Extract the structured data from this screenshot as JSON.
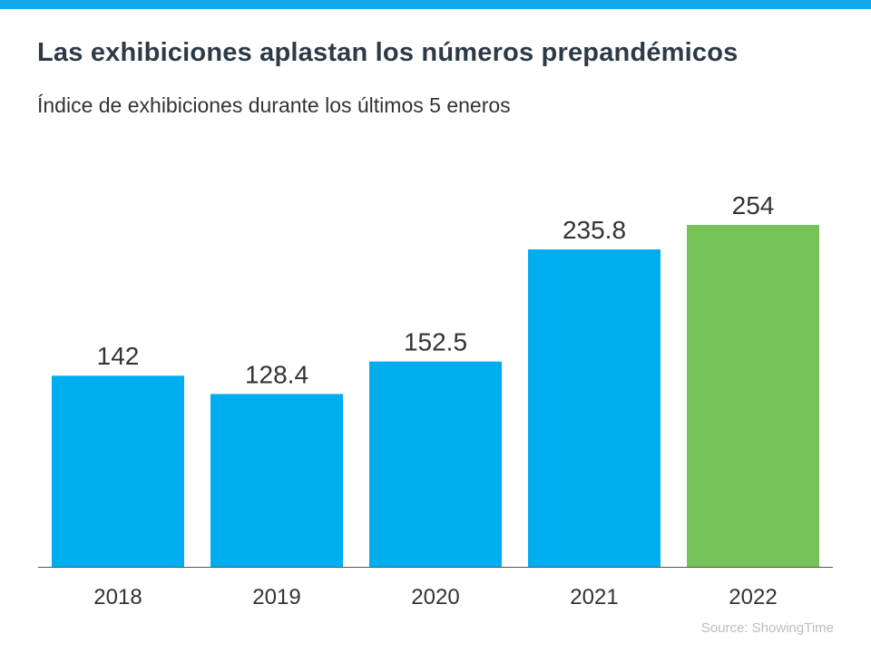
{
  "chart_data": {
    "type": "bar",
    "title": "Las exhibiciones aplastan los números prepandémicos",
    "subtitle": "Índice de exhibiciones durante los últimos 5 eneros",
    "categories": [
      "2018",
      "2019",
      "2020",
      "2021",
      "2022"
    ],
    "values": [
      142,
      128.4,
      152.5,
      235.8,
      254
    ],
    "data_labels": [
      "142",
      "128.4",
      "152.5",
      "235.8",
      "254"
    ],
    "colors": [
      "#00aeef",
      "#00aeef",
      "#00aeef",
      "#00aeef",
      "#76c35a"
    ],
    "xlabel": "",
    "ylabel": "",
    "ylim": [
      0,
      254
    ],
    "grid": false,
    "source": "Source: ShowingTime"
  },
  "accent_color": "#11a9ec"
}
